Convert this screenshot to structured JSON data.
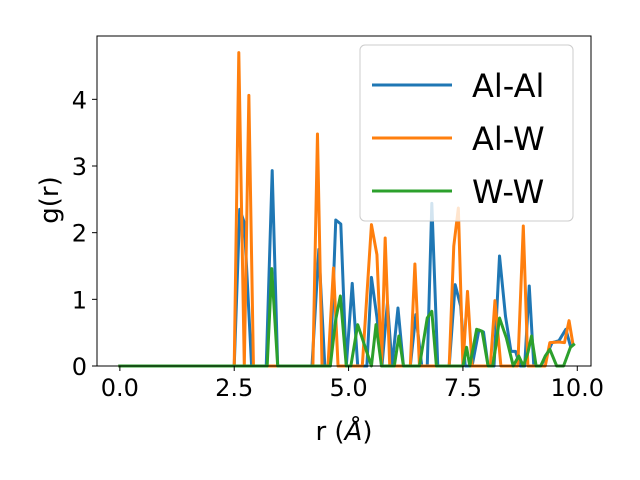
{
  "chart_data": {
    "type": "line",
    "title": "",
    "xlabel": "r (Å)",
    "xlabel_prefix": "r (",
    "xlabel_unit": "Å",
    "xlabel_suffix": ")",
    "ylabel": "g(r)",
    "xlim": [
      -0.5,
      10.3
    ],
    "ylim": [
      0,
      4.95
    ],
    "xticks": [
      0.0,
      2.5,
      5.0,
      7.5,
      10.0
    ],
    "xtick_labels": [
      "0.0",
      "2.5",
      "5.0",
      "7.5",
      "10.0"
    ],
    "yticks": [
      0,
      1,
      2,
      3,
      4
    ],
    "ytick_labels": [
      "0",
      "1",
      "2",
      "3",
      "4"
    ],
    "grid": false,
    "legend_position": "top-right",
    "series": [
      {
        "name": "Al-Al",
        "color": "#1f77b4",
        "x": [
          0.0,
          2.5,
          2.62,
          2.72,
          2.88,
          3.2,
          3.33,
          3.45,
          4.2,
          4.35,
          4.48,
          4.6,
          4.72,
          4.83,
          4.95,
          5.08,
          5.2,
          5.4,
          5.5,
          5.62,
          5.73,
          5.85,
          5.95,
          6.08,
          6.2,
          6.35,
          6.47,
          6.6,
          6.72,
          6.82,
          6.95,
          7.2,
          7.33,
          7.45,
          7.55,
          7.7,
          7.85,
          7.95,
          8.05,
          8.18,
          8.3,
          8.43,
          8.55,
          8.65,
          8.75,
          8.85,
          8.95,
          9.05,
          9.2,
          9.3,
          9.45,
          9.6,
          9.75,
          9.85
        ],
        "y": [
          0.0,
          0.0,
          2.35,
          2.15,
          0.0,
          0.0,
          2.93,
          0.0,
          0.0,
          1.75,
          0.0,
          0.0,
          2.19,
          2.13,
          0.0,
          1.24,
          0.0,
          0.0,
          1.33,
          0.73,
          0.0,
          0.95,
          0.0,
          0.87,
          0.0,
          0.0,
          0.77,
          0.0,
          0.0,
          2.44,
          0.0,
          0.0,
          1.22,
          0.9,
          0.0,
          0.0,
          0.54,
          0.51,
          0.0,
          0.0,
          1.65,
          0.75,
          0.22,
          0.22,
          0.0,
          0.0,
          1.2,
          0.0,
          0.0,
          0.12,
          0.35,
          0.38,
          0.55,
          0.3
        ]
      },
      {
        "name": "Al-W",
        "color": "#ff7f0e",
        "x": [
          0.0,
          2.5,
          2.6,
          2.72,
          2.82,
          2.92,
          3.1,
          4.1,
          4.22,
          4.32,
          4.42,
          4.55,
          4.67,
          4.77,
          4.9,
          5.3,
          5.5,
          5.62,
          5.72,
          5.8,
          5.9,
          6.35,
          6.45,
          6.55,
          6.72,
          6.82,
          7.2,
          7.3,
          7.4,
          7.5,
          7.6,
          7.7,
          7.85,
          8.1,
          8.2,
          8.33,
          8.45,
          8.55,
          8.7,
          8.82,
          8.92,
          9.02,
          9.15,
          9.3,
          9.4,
          9.6,
          9.72,
          9.82,
          9.9
        ],
        "y": [
          0.0,
          0.0,
          4.7,
          0.0,
          4.06,
          0.0,
          0.0,
          0.0,
          0.0,
          3.48,
          0.0,
          0.0,
          1.47,
          0.0,
          0.0,
          0.0,
          2.12,
          1.67,
          0.0,
          1.92,
          0.0,
          0.0,
          1.53,
          0.0,
          0.0,
          0.0,
          0.0,
          1.8,
          2.37,
          0.0,
          1.12,
          0.0,
          0.0,
          0.0,
          0.98,
          0.0,
          0.0,
          0.0,
          0.0,
          2.1,
          0.0,
          0.0,
          0.0,
          0.0,
          0.35,
          0.36,
          0.35,
          0.68,
          0.35
        ]
      },
      {
        "name": "W-W",
        "color": "#2ca02c",
        "x": [
          0.0,
          3.22,
          3.32,
          3.45,
          4.6,
          4.72,
          4.82,
          4.95,
          5.05,
          5.2,
          5.5,
          5.6,
          5.72,
          6.0,
          6.1,
          6.2,
          6.55,
          6.72,
          6.82,
          6.92,
          7.5,
          7.58,
          7.65,
          7.8,
          7.92,
          8.05,
          8.15,
          8.22,
          8.3,
          8.45,
          8.6,
          8.72,
          8.82,
          8.92,
          9.0,
          9.1,
          9.2,
          9.3,
          9.4,
          9.55,
          9.7,
          9.85,
          9.92
        ],
        "y": [
          0.0,
          0.0,
          1.46,
          0.0,
          0.0,
          0.7,
          1.05,
          0.0,
          0.0,
          0.62,
          0.0,
          0.62,
          0.0,
          0.0,
          0.45,
          0.0,
          0.0,
          0.72,
          0.82,
          0.0,
          0.0,
          0.28,
          0.0,
          0.55,
          0.52,
          0.0,
          0.0,
          0.3,
          0.72,
          0.42,
          0.0,
          0.15,
          0.0,
          0.2,
          0.45,
          0.0,
          0.0,
          0.15,
          0.25,
          0.0,
          0.0,
          0.28,
          0.32
        ]
      }
    ]
  }
}
